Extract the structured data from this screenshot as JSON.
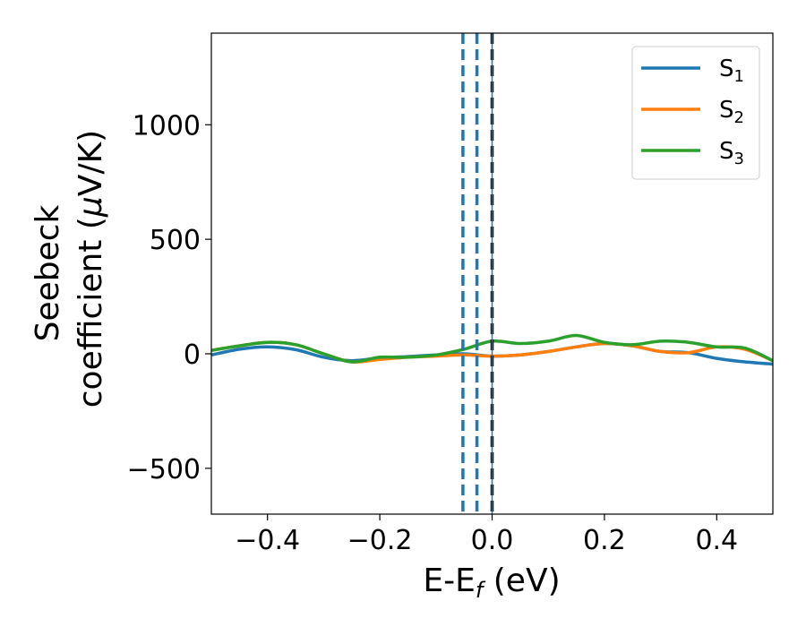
{
  "chart_data": {
    "type": "line",
    "title": "",
    "xlabel": {
      "main": "E-E",
      "sub": "f",
      "unit": " (eV)"
    },
    "ylabel": {
      "line1": "Seebeck",
      "line2_prefix": "coefficient  (",
      "mu": "μ",
      "line2_suffix": "V/K)"
    },
    "xlim": [
      -0.5,
      0.5
    ],
    "ylim": [
      -700,
      1400
    ],
    "xticks": [
      -0.4,
      -0.2,
      0.0,
      0.2,
      0.4
    ],
    "xtick_labels": [
      "−0.4",
      "−0.2",
      "0.0",
      "0.2",
      "0.4"
    ],
    "yticks": [
      -500,
      0,
      500,
      1000
    ],
    "ytick_labels": [
      "−500",
      "0",
      "500",
      "1000"
    ],
    "grid": false,
    "legend_position": "top-right",
    "vertical_lines": [
      {
        "x": -0.052,
        "color": "#1f77b4",
        "style": "dashed"
      },
      {
        "x": -0.027,
        "color": "#1f77b4",
        "style": "dashed"
      },
      {
        "x": 0.0,
        "color": "#000000",
        "style": "dashed"
      },
      {
        "x": 0.0,
        "color": "#1f77b4",
        "style": "solid"
      }
    ],
    "series": [
      {
        "name": "S",
        "sub": "1",
        "color": "#1f77b4",
        "x": [
          -0.5,
          -0.45,
          -0.4,
          -0.35,
          -0.3,
          -0.25,
          -0.2,
          -0.15,
          -0.1,
          -0.05,
          0.0,
          0.05,
          0.1,
          0.15,
          0.2,
          0.25,
          0.3,
          0.35,
          0.4,
          0.45,
          0.5
        ],
        "y": [
          -5,
          20,
          30,
          18,
          -15,
          -30,
          -18,
          -12,
          -5,
          0,
          -10,
          -5,
          10,
          30,
          45,
          35,
          10,
          5,
          -20,
          -35,
          -45
        ]
      },
      {
        "name": "S",
        "sub": "2",
        "color": "#ff7f0e",
        "x": [
          -0.5,
          -0.45,
          -0.4,
          -0.35,
          -0.3,
          -0.25,
          -0.2,
          -0.15,
          -0.1,
          -0.05,
          0.0,
          0.05,
          0.1,
          0.15,
          0.2,
          0.25,
          0.3,
          0.35,
          0.4,
          0.45,
          0.5
        ],
        "y": [
          15,
          35,
          50,
          40,
          0,
          -35,
          -25,
          -15,
          -10,
          -5,
          -10,
          -5,
          10,
          30,
          45,
          35,
          10,
          5,
          30,
          20,
          -30
        ]
      },
      {
        "name": "S",
        "sub": "3",
        "color": "#2ca02c",
        "x": [
          -0.5,
          -0.45,
          -0.4,
          -0.35,
          -0.3,
          -0.25,
          -0.2,
          -0.15,
          -0.1,
          -0.05,
          0.0,
          0.05,
          0.1,
          0.15,
          0.2,
          0.25,
          0.3,
          0.35,
          0.4,
          0.45,
          0.5
        ],
        "y": [
          15,
          35,
          50,
          40,
          0,
          -35,
          -15,
          -15,
          -5,
          20,
          55,
          45,
          55,
          80,
          50,
          40,
          55,
          50,
          30,
          25,
          -30
        ]
      }
    ]
  }
}
